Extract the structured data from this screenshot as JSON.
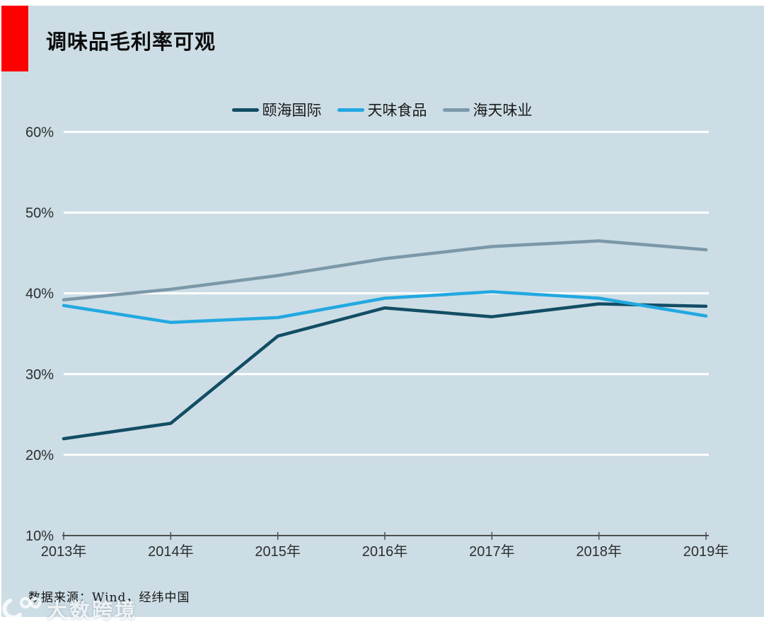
{
  "panel": {
    "background": "#ccdde5",
    "accent_color": "#fe0000"
  },
  "header": {
    "title": "调味品毛利率可观"
  },
  "legend": [
    {
      "label": "颐海国际",
      "color": "#124d64"
    },
    {
      "label": "天味食品",
      "color": "#22a8e0"
    },
    {
      "label": "海天味业",
      "color": "#7b98a8"
    }
  ],
  "chart_data": {
    "type": "line",
    "x": [
      "2013年",
      "2014年",
      "2015年",
      "2016年",
      "2017年",
      "2018年",
      "2019年"
    ],
    "series": [
      {
        "name": "颐海国际",
        "color": "#124d64",
        "values": [
          22.0,
          23.9,
          34.7,
          38.2,
          37.1,
          38.7,
          38.4
        ]
      },
      {
        "name": "天味食品",
        "color": "#22a8e0",
        "values": [
          38.5,
          36.4,
          37.0,
          39.4,
          40.2,
          39.4,
          37.2
        ]
      },
      {
        "name": "海天味业",
        "color": "#7b98a8",
        "values": [
          39.2,
          40.5,
          42.2,
          44.3,
          45.8,
          46.5,
          45.4
        ]
      }
    ],
    "ylim": [
      10,
      60
    ],
    "ytick_step": 10,
    "ytick_labels": [
      "10%",
      "20%",
      "30%",
      "40%",
      "50%",
      "60%"
    ],
    "grid": true,
    "gridline_color": "#ffffff",
    "axis_color": "#4f4f4f",
    "legend_position": "top",
    "title": "调味品毛利率可观",
    "xlabel": "",
    "ylabel": ""
  },
  "footer": {
    "source": "数据来源：Wind，经纬中国"
  },
  "watermark": {
    "text": "大数跨境"
  }
}
